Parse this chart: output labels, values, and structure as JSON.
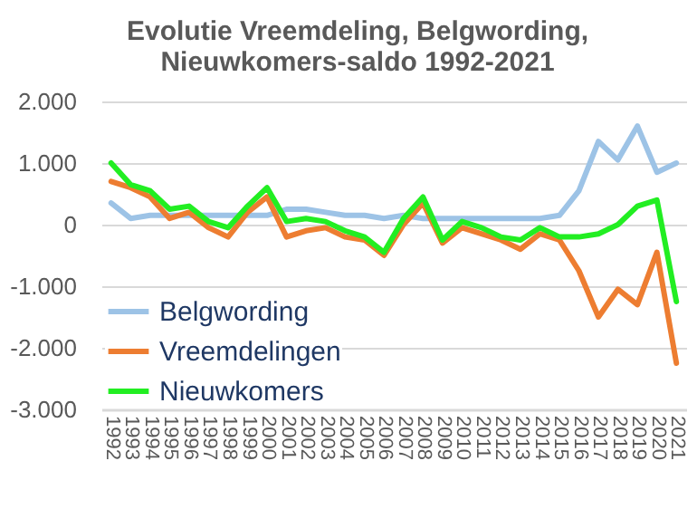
{
  "chart_data": {
    "type": "line",
    "title": "Evolutie Vreemdeling, Belgwording, Nieuwkomers-saldo 1992-2021",
    "categories": [
      "1992",
      "1993",
      "1994",
      "1995",
      "1996",
      "1997",
      "1998",
      "1999",
      "2000",
      "2001",
      "2002",
      "2003",
      "2004",
      "2005",
      "2006",
      "2007",
      "2008",
      "2009",
      "2010",
      "2011",
      "2012",
      "2013",
      "2014",
      "2015",
      "2016",
      "2017",
      "2018",
      "2019",
      "2020",
      "2021"
    ],
    "series": [
      {
        "name": "Belgwording",
        "color": "#9dc3e6",
        "values": [
          350,
          100,
          150,
          150,
          150,
          150,
          150,
          150,
          150,
          250,
          250,
          200,
          150,
          150,
          100,
          150,
          100,
          100,
          100,
          100,
          100,
          100,
          100,
          150,
          550,
          1350,
          1050,
          1600,
          850,
          1000
        ]
      },
      {
        "name": "Vreemdelingen",
        "color": "#ed7d31",
        "values": [
          700,
          600,
          450,
          100,
          200,
          -50,
          -200,
          200,
          450,
          -200,
          -100,
          -50,
          -200,
          -250,
          -500,
          0,
          350,
          -300,
          -50,
          -150,
          -250,
          -400,
          -150,
          -250,
          -750,
          -1500,
          -1050,
          -1300,
          -450,
          -2250
        ]
      },
      {
        "name": "Nieuwkomers",
        "color": "#22ee22",
        "values": [
          1000,
          650,
          550,
          250,
          300,
          50,
          -50,
          300,
          600,
          50,
          100,
          50,
          -100,
          -200,
          -450,
          100,
          450,
          -250,
          50,
          -50,
          -200,
          -250,
          -50,
          -200,
          -200,
          -150,
          0,
          300,
          400,
          -1250
        ]
      }
    ],
    "ylim": [
      -3000,
      2000
    ],
    "yticks": [
      {
        "value": -3000,
        "label": "-3.000"
      },
      {
        "value": -2000,
        "label": "-2.000"
      },
      {
        "value": -1000,
        "label": "-1.000"
      },
      0,
      {
        "value": 1000,
        "label": "1.000"
      },
      {
        "value": 2000,
        "label": "2.000"
      }
    ],
    "grid": "y",
    "legend": "bottom left",
    "marker": "none",
    "line_style": "solid"
  }
}
